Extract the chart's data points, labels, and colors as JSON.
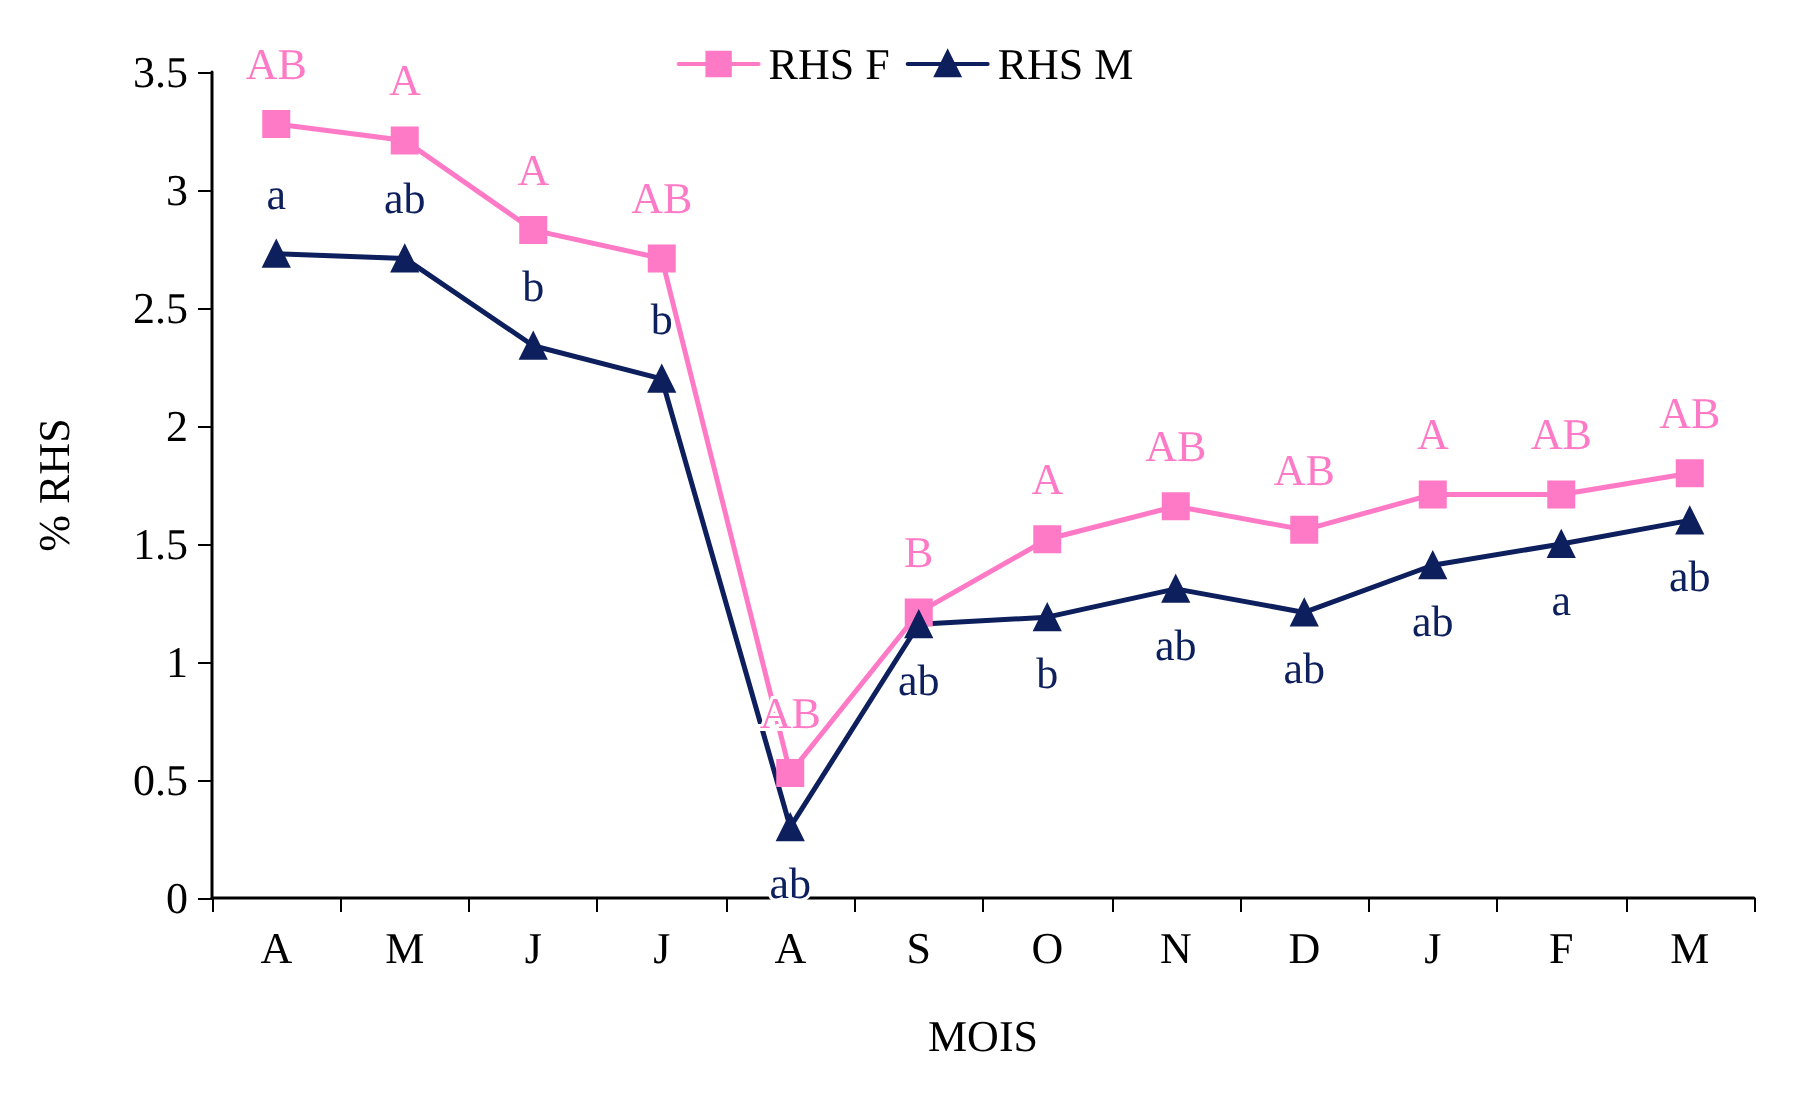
{
  "chart_data": {
    "type": "line",
    "xlabel": "MOIS",
    "ylabel": "% RHS",
    "categories": [
      "A",
      "M",
      "J",
      "J",
      "A",
      "S",
      "O",
      "N",
      "D",
      "J",
      "F",
      "M"
    ],
    "ylim": [
      0,
      3.5
    ],
    "yticks": [
      0,
      0.5,
      1,
      1.5,
      2,
      2.5,
      3,
      3.5
    ],
    "grid": false,
    "legend": "top",
    "line_style": "solid",
    "series": [
      {
        "name": "RHS F",
        "color": "#ff7ac6",
        "marker": "square",
        "values": [
          3.28,
          3.21,
          2.83,
          2.71,
          0.53,
          1.21,
          1.52,
          1.66,
          1.56,
          1.71,
          1.71,
          1.8
        ],
        "value_labels": [
          "AB",
          "A",
          "A",
          "AB",
          "AB",
          "B",
          "A",
          "AB",
          "AB",
          "A",
          "AB",
          "AB"
        ]
      },
      {
        "name": "RHS M",
        "color": "#0d1f5c",
        "marker": "triangle",
        "values": [
          2.73,
          2.71,
          2.34,
          2.2,
          0.3,
          1.16,
          1.19,
          1.31,
          1.21,
          1.41,
          1.5,
          1.6
        ],
        "value_labels": [
          "a",
          "ab",
          "b",
          "b",
          "ab",
          "ab",
          "b",
          "ab",
          "ab",
          "ab",
          "a",
          "ab"
        ]
      }
    ]
  }
}
